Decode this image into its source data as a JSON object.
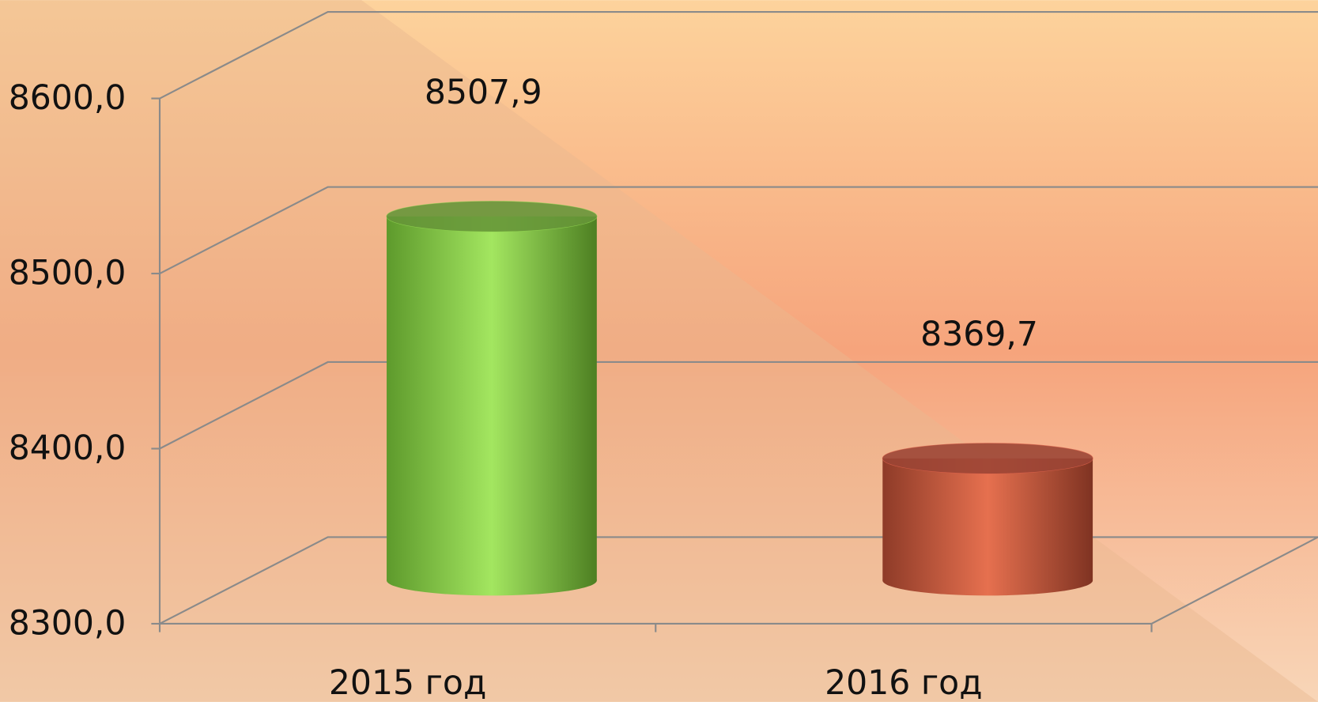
{
  "chart_data": {
    "type": "bar",
    "categories": [
      "2015 год",
      "2016 год"
    ],
    "values": [
      8507.9,
      8369.7
    ],
    "value_labels": [
      "8507,9",
      "8369,7"
    ],
    "colors": [
      "#8fd14f",
      "#d9604a"
    ],
    "ylim": [
      8300,
      8600
    ],
    "yticks": [
      {
        "value": 8300,
        "label": "8300,0"
      },
      {
        "value": 8400,
        "label": "8400,0"
      },
      {
        "value": 8500,
        "label": "8500,0"
      },
      {
        "value": 8600,
        "label": "8600,0"
      }
    ],
    "grid": true
  }
}
